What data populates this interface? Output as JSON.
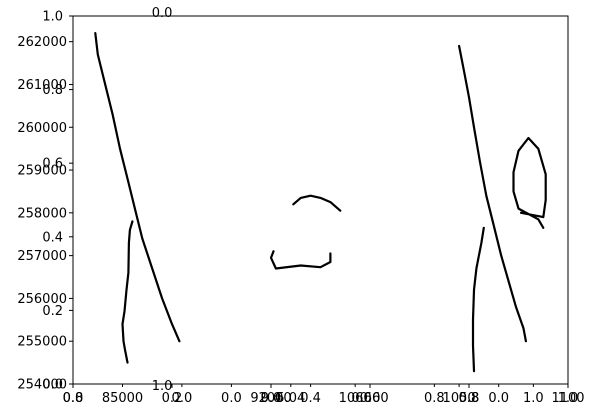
{
  "chart_data": {
    "type": "line",
    "title": "",
    "xlabel": "",
    "ylabel": "",
    "ylim": [
      254000,
      262600
    ],
    "y_ticks": [
      {
        "value": 254000,
        "label": "254000"
      },
      {
        "value": 255000,
        "label": "255000"
      },
      {
        "value": 256000,
        "label": "256000"
      },
      {
        "value": 257000,
        "label": "257000"
      },
      {
        "value": 258000,
        "label": "258000"
      },
      {
        "value": 259000,
        "label": "259000"
      },
      {
        "value": 260000,
        "label": "260000"
      },
      {
        "value": 261000,
        "label": "261000"
      },
      {
        "value": 262000,
        "label": "262000"
      }
    ],
    "y_ticks_overlay": [
      {
        "value": 0.0,
        "label": "0.0"
      },
      {
        "value": 0.2,
        "label": "0.2"
      },
      {
        "value": 0.4,
        "label": "0.4"
      },
      {
        "value": 0.6,
        "label": "0.6"
      },
      {
        "value": 0.8,
        "label": "0.8"
      },
      {
        "value": 1.0,
        "label": "1.0"
      }
    ],
    "x_ticks_overlay": [
      {
        "value": 0.0,
        "label": "0.0"
      },
      {
        "value": 0.2,
        "label": "0.2"
      },
      {
        "value": 0.4,
        "label": "0.4"
      },
      {
        "value": 0.6,
        "label": "0.6"
      },
      {
        "value": 0.8,
        "label": "0.8"
      },
      {
        "value": 1.0,
        "label": "1.0"
      }
    ],
    "x_tick_labels_panels": [
      {
        "panel_x": 0.0,
        "labels": [
          {
            "value": 0.0,
            "label": "0.8"
          },
          {
            "value": 0.1,
            "label": "85000"
          },
          {
            "value": 0.22,
            "label": "0.0"
          },
          {
            "value": 0.32,
            "label": "0.0"
          },
          {
            "value": 0.4,
            "label": "92000"
          }
        ]
      },
      {
        "panel_x": 0.4,
        "labels": [
          {
            "value": 0.4,
            "label": "9.0"
          },
          {
            "value": 0.44,
            "label": "5.04"
          },
          {
            "value": 0.48,
            "label": "0.4"
          }
        ]
      },
      {
        "panel_x": 0.6,
        "labels": [
          {
            "value": 0.57,
            "label": "1060"
          },
          {
            "value": 0.6,
            "label": "0.600"
          }
        ]
      },
      {
        "panel_x": 0.8,
        "labels": [
          {
            "value": 0.73,
            "label": "0.8"
          },
          {
            "value": 0.78,
            "label": "1050"
          },
          {
            "value": 0.8,
            "label": "0.8"
          },
          {
            "value": 0.86,
            "label": "0.0"
          },
          {
            "value": 0.93,
            "label": "1.0"
          },
          {
            "value": 1.0,
            "label": "1100"
          }
        ]
      }
    ],
    "extra_labels": [
      {
        "text": "0.0",
        "x": 0.18,
        "y": 1.0
      },
      {
        "text": "1.0",
        "x": 0.18,
        "y": 0.0
      }
    ],
    "series": [
      {
        "values": [
          [
            0.045,
            262200
          ],
          [
            0.05,
            261700
          ],
          [
            0.065,
            261000
          ],
          [
            0.08,
            260300
          ],
          [
            0.095,
            259500
          ],
          [
            0.11,
            258800
          ],
          [
            0.125,
            258100
          ],
          [
            0.14,
            257400
          ],
          [
            0.16,
            256700
          ],
          [
            0.18,
            256000
          ],
          [
            0.2,
            255400
          ],
          [
            0.215,
            255000
          ]
        ]
      },
      {
        "values": [
          [
            0.12,
            257800
          ],
          [
            0.115,
            257600
          ],
          [
            0.113,
            257300
          ],
          [
            0.112,
            256600
          ],
          [
            0.108,
            256200
          ],
          [
            0.104,
            255700
          ],
          [
            0.1,
            255400
          ],
          [
            0.102,
            255000
          ],
          [
            0.105,
            254800
          ],
          [
            0.11,
            254500
          ]
        ]
      },
      {
        "values": [
          [
            0.445,
            258200
          ],
          [
            0.46,
            258350
          ],
          [
            0.48,
            258400
          ],
          [
            0.5,
            258350
          ],
          [
            0.52,
            258250
          ],
          [
            0.54,
            258050
          ]
        ]
      },
      {
        "values": [
          [
            0.405,
            257100
          ],
          [
            0.4,
            256950
          ],
          [
            0.41,
            256700
          ],
          [
            0.46,
            256770
          ],
          [
            0.5,
            256730
          ],
          [
            0.52,
            256850
          ],
          [
            0.52,
            257050
          ]
        ]
      },
      {
        "values": [
          [
            0.78,
            261900
          ],
          [
            0.79,
            261300
          ],
          [
            0.8,
            260700
          ],
          [
            0.81,
            260000
          ],
          [
            0.822,
            259200
          ],
          [
            0.835,
            258400
          ],
          [
            0.85,
            257700
          ],
          [
            0.865,
            257000
          ],
          [
            0.88,
            256400
          ],
          [
            0.895,
            255800
          ],
          [
            0.91,
            255300
          ],
          [
            0.915,
            255000
          ]
        ]
      },
      {
        "values": [
          [
            0.83,
            257650
          ],
          [
            0.825,
            257300
          ],
          [
            0.82,
            257000
          ],
          [
            0.815,
            256700
          ],
          [
            0.81,
            256200
          ],
          [
            0.808,
            255500
          ],
          [
            0.808,
            254900
          ],
          [
            0.81,
            254300
          ]
        ]
      },
      {
        "values": [
          [
            0.95,
            257650
          ],
          [
            0.94,
            257850
          ],
          [
            0.9,
            258100
          ],
          [
            0.89,
            258500
          ],
          [
            0.89,
            258950
          ],
          [
            0.9,
            259450
          ],
          [
            0.92,
            259750
          ],
          [
            0.94,
            259500
          ],
          [
            0.955,
            258900
          ],
          [
            0.955,
            258300
          ],
          [
            0.95,
            257900
          ],
          [
            0.905,
            258000
          ]
        ]
      }
    ]
  }
}
